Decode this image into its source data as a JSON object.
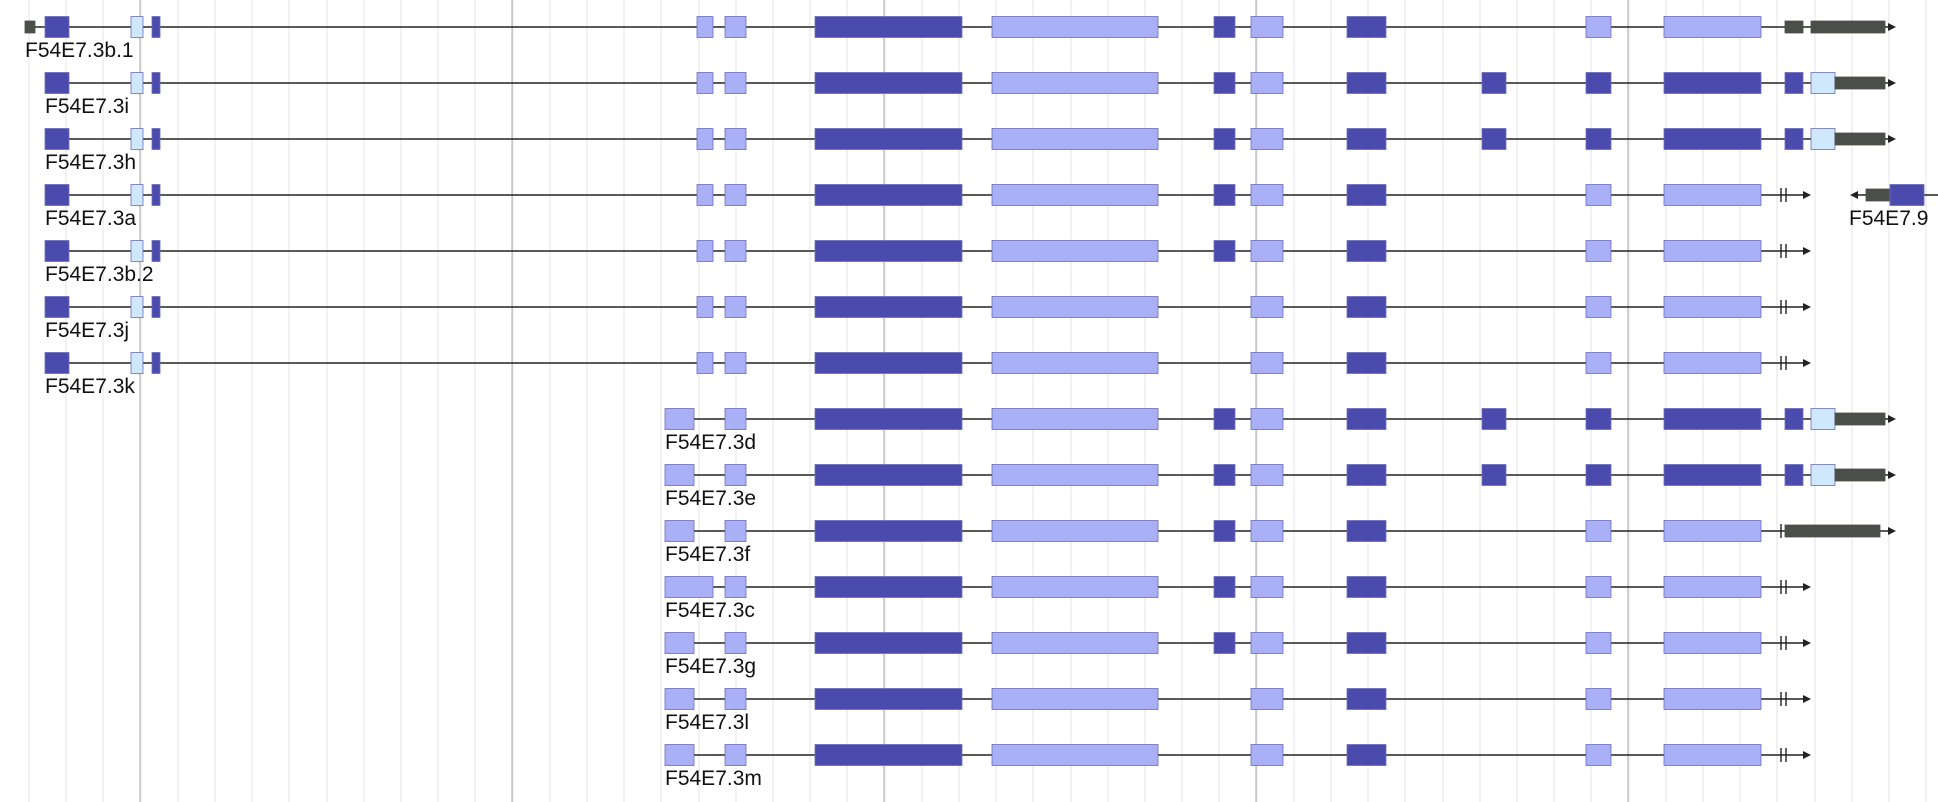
{
  "colors": {
    "background": "#ffffff",
    "grid_minor": "#e6e6e6",
    "grid_major": "#bdbdbd",
    "intron_line": "#222222",
    "cds_dark": "#4b4bad",
    "cds_light": "#aab0f6",
    "utr_pale": "#cfe8fb",
    "noncoding_dark": "#4a4f49",
    "exon_stroke": "#6c6cbe"
  },
  "transcripts": [
    {
      "label": "F54E7.3b.1",
      "strand": "+",
      "ending": "arrow",
      "exons": [
        [
          25,
          35,
          "gray"
        ],
        [
          45,
          69,
          "dark"
        ],
        [
          131,
          143,
          "pale"
        ],
        [
          152,
          160,
          "dark"
        ],
        [
          697,
          713,
          "light"
        ],
        [
          725,
          746,
          "light"
        ],
        [
          815,
          962,
          "dark"
        ],
        [
          992,
          1158,
          "light"
        ],
        [
          1214,
          1235,
          "dark"
        ],
        [
          1251,
          1283,
          "light"
        ],
        [
          1347,
          1386,
          "dark"
        ],
        [
          1586,
          1611,
          "light"
        ],
        [
          1664,
          1761,
          "light"
        ],
        [
          1785,
          1803,
          "gray"
        ],
        [
          1811,
          1885,
          "gray"
        ]
      ]
    },
    {
      "label": "F54E7.3i",
      "strand": "+",
      "ending": "arrow",
      "exons": [
        [
          45,
          69,
          "dark"
        ],
        [
          131,
          143,
          "pale"
        ],
        [
          152,
          160,
          "dark"
        ],
        [
          697,
          713,
          "light"
        ],
        [
          725,
          746,
          "light"
        ],
        [
          815,
          962,
          "dark"
        ],
        [
          992,
          1158,
          "light"
        ],
        [
          1214,
          1235,
          "dark"
        ],
        [
          1251,
          1283,
          "light"
        ],
        [
          1347,
          1386,
          "dark"
        ],
        [
          1482,
          1506,
          "dark"
        ],
        [
          1586,
          1611,
          "dark"
        ],
        [
          1664,
          1761,
          "dark"
        ],
        [
          1785,
          1803,
          "dark"
        ],
        [
          1811,
          1835,
          "pale"
        ],
        [
          1835,
          1885,
          "gray"
        ]
      ]
    },
    {
      "label": "F54E7.3h",
      "strand": "+",
      "ending": "arrow",
      "exons": [
        [
          45,
          69,
          "dark"
        ],
        [
          131,
          143,
          "pale"
        ],
        [
          152,
          160,
          "dark"
        ],
        [
          697,
          713,
          "light"
        ],
        [
          725,
          746,
          "light"
        ],
        [
          815,
          962,
          "dark"
        ],
        [
          992,
          1158,
          "light"
        ],
        [
          1214,
          1235,
          "dark"
        ],
        [
          1251,
          1283,
          "light"
        ],
        [
          1347,
          1386,
          "dark"
        ],
        [
          1482,
          1506,
          "dark"
        ],
        [
          1586,
          1611,
          "dark"
        ],
        [
          1664,
          1761,
          "dark"
        ],
        [
          1785,
          1803,
          "dark"
        ],
        [
          1811,
          1835,
          "pale"
        ],
        [
          1835,
          1885,
          "gray"
        ]
      ]
    },
    {
      "label": "F54E7.3a",
      "strand": "+",
      "ending": "truncated",
      "exons": [
        [
          45,
          69,
          "dark"
        ],
        [
          131,
          143,
          "pale"
        ],
        [
          152,
          160,
          "dark"
        ],
        [
          697,
          713,
          "light"
        ],
        [
          725,
          746,
          "light"
        ],
        [
          815,
          962,
          "dark"
        ],
        [
          992,
          1158,
          "light"
        ],
        [
          1214,
          1235,
          "dark"
        ],
        [
          1251,
          1283,
          "light"
        ],
        [
          1347,
          1386,
          "dark"
        ],
        [
          1586,
          1611,
          "light"
        ],
        [
          1664,
          1761,
          "light"
        ]
      ]
    },
    {
      "label": "F54E7.3b.2",
      "strand": "+",
      "ending": "truncated",
      "exons": [
        [
          45,
          69,
          "dark"
        ],
        [
          131,
          143,
          "pale"
        ],
        [
          152,
          160,
          "dark"
        ],
        [
          697,
          713,
          "light"
        ],
        [
          725,
          746,
          "light"
        ],
        [
          815,
          962,
          "dark"
        ],
        [
          992,
          1158,
          "light"
        ],
        [
          1214,
          1235,
          "dark"
        ],
        [
          1251,
          1283,
          "light"
        ],
        [
          1347,
          1386,
          "dark"
        ],
        [
          1586,
          1611,
          "light"
        ],
        [
          1664,
          1761,
          "light"
        ]
      ]
    },
    {
      "label": "F54E7.3j",
      "strand": "+",
      "ending": "truncated",
      "exons": [
        [
          45,
          69,
          "dark"
        ],
        [
          131,
          143,
          "pale"
        ],
        [
          152,
          160,
          "dark"
        ],
        [
          697,
          713,
          "light"
        ],
        [
          725,
          746,
          "light"
        ],
        [
          815,
          962,
          "dark"
        ],
        [
          992,
          1158,
          "light"
        ],
        [
          1251,
          1283,
          "light"
        ],
        [
          1347,
          1386,
          "dark"
        ],
        [
          1586,
          1611,
          "light"
        ],
        [
          1664,
          1761,
          "light"
        ]
      ]
    },
    {
      "label": "F54E7.3k",
      "strand": "+",
      "ending": "truncated",
      "exons": [
        [
          45,
          69,
          "dark"
        ],
        [
          131,
          143,
          "pale"
        ],
        [
          152,
          160,
          "dark"
        ],
        [
          697,
          713,
          "light"
        ],
        [
          725,
          746,
          "light"
        ],
        [
          815,
          962,
          "dark"
        ],
        [
          992,
          1158,
          "light"
        ],
        [
          1251,
          1283,
          "light"
        ],
        [
          1347,
          1386,
          "dark"
        ],
        [
          1586,
          1611,
          "light"
        ],
        [
          1664,
          1761,
          "light"
        ]
      ]
    },
    {
      "label": "F54E7.3d",
      "strand": "+",
      "ending": "arrow",
      "exons": [
        [
          665,
          694,
          "light"
        ],
        [
          725,
          746,
          "light"
        ],
        [
          815,
          962,
          "dark"
        ],
        [
          992,
          1158,
          "light"
        ],
        [
          1214,
          1235,
          "dark"
        ],
        [
          1251,
          1283,
          "light"
        ],
        [
          1347,
          1386,
          "dark"
        ],
        [
          1482,
          1506,
          "dark"
        ],
        [
          1586,
          1611,
          "dark"
        ],
        [
          1664,
          1761,
          "dark"
        ],
        [
          1785,
          1803,
          "dark"
        ],
        [
          1811,
          1835,
          "pale"
        ],
        [
          1835,
          1885,
          "gray"
        ]
      ]
    },
    {
      "label": "F54E7.3e",
      "strand": "+",
      "ending": "arrow",
      "exons": [
        [
          665,
          694,
          "light"
        ],
        [
          725,
          746,
          "light"
        ],
        [
          815,
          962,
          "dark"
        ],
        [
          992,
          1158,
          "light"
        ],
        [
          1214,
          1235,
          "dark"
        ],
        [
          1251,
          1283,
          "light"
        ],
        [
          1347,
          1386,
          "dark"
        ],
        [
          1482,
          1506,
          "dark"
        ],
        [
          1586,
          1611,
          "dark"
        ],
        [
          1664,
          1761,
          "dark"
        ],
        [
          1785,
          1803,
          "dark"
        ],
        [
          1811,
          1835,
          "pale"
        ],
        [
          1835,
          1885,
          "gray"
        ]
      ]
    },
    {
      "label": "F54E7.3f",
      "strand": "+",
      "ending": "arrow-tick",
      "exons": [
        [
          665,
          694,
          "light"
        ],
        [
          725,
          746,
          "light"
        ],
        [
          815,
          962,
          "dark"
        ],
        [
          992,
          1158,
          "light"
        ],
        [
          1214,
          1235,
          "dark"
        ],
        [
          1251,
          1283,
          "light"
        ],
        [
          1347,
          1386,
          "dark"
        ],
        [
          1586,
          1611,
          "light"
        ],
        [
          1664,
          1761,
          "light"
        ],
        [
          1785,
          1880,
          "gray"
        ]
      ]
    },
    {
      "label": "F54E7.3c",
      "strand": "+",
      "ending": "truncated",
      "exons": [
        [
          665,
          713,
          "light"
        ],
        [
          725,
          746,
          "light"
        ],
        [
          815,
          962,
          "dark"
        ],
        [
          992,
          1158,
          "light"
        ],
        [
          1214,
          1235,
          "dark"
        ],
        [
          1251,
          1283,
          "light"
        ],
        [
          1347,
          1386,
          "dark"
        ],
        [
          1586,
          1611,
          "light"
        ],
        [
          1664,
          1761,
          "light"
        ]
      ]
    },
    {
      "label": "F54E7.3g",
      "strand": "+",
      "ending": "truncated",
      "exons": [
        [
          665,
          694,
          "light"
        ],
        [
          725,
          746,
          "light"
        ],
        [
          815,
          962,
          "dark"
        ],
        [
          992,
          1158,
          "light"
        ],
        [
          1214,
          1235,
          "dark"
        ],
        [
          1251,
          1283,
          "light"
        ],
        [
          1347,
          1386,
          "dark"
        ],
        [
          1586,
          1611,
          "light"
        ],
        [
          1664,
          1761,
          "light"
        ]
      ]
    },
    {
      "label": "F54E7.3l",
      "strand": "+",
      "ending": "truncated",
      "exons": [
        [
          665,
          694,
          "light"
        ],
        [
          725,
          746,
          "light"
        ],
        [
          815,
          962,
          "dark"
        ],
        [
          992,
          1158,
          "light"
        ],
        [
          1251,
          1283,
          "light"
        ],
        [
          1347,
          1386,
          "dark"
        ],
        [
          1586,
          1611,
          "light"
        ],
        [
          1664,
          1761,
          "light"
        ]
      ]
    },
    {
      "label": "F54E7.3m",
      "strand": "+",
      "ending": "truncated",
      "exons": [
        [
          665,
          694,
          "light"
        ],
        [
          725,
          746,
          "light"
        ],
        [
          815,
          962,
          "dark"
        ],
        [
          992,
          1158,
          "light"
        ],
        [
          1251,
          1283,
          "light"
        ],
        [
          1347,
          1386,
          "dark"
        ],
        [
          1586,
          1611,
          "light"
        ],
        [
          1664,
          1761,
          "light"
        ]
      ]
    }
  ],
  "neighbor_gene": {
    "label": "F54E7.9",
    "strand": "-",
    "exons": [
      [
        1866,
        1890,
        "gray"
      ],
      [
        1890,
        1924,
        "dark"
      ]
    ]
  }
}
